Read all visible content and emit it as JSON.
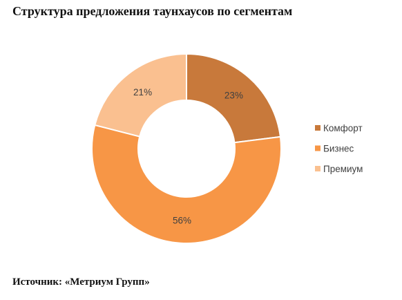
{
  "chart_data": {
    "type": "pie",
    "variant": "donut",
    "title": "Структура предложения таунхаусов по сегментам",
    "categories": [
      "Комфорт",
      "Бизнес",
      "Премиум"
    ],
    "values": [
      23,
      56,
      21
    ],
    "value_suffix": "%",
    "colors": [
      "#C8793B",
      "#F79646",
      "#FAC090"
    ],
    "legend": "right"
  },
  "source": "Источник: «Метриум Групп»"
}
